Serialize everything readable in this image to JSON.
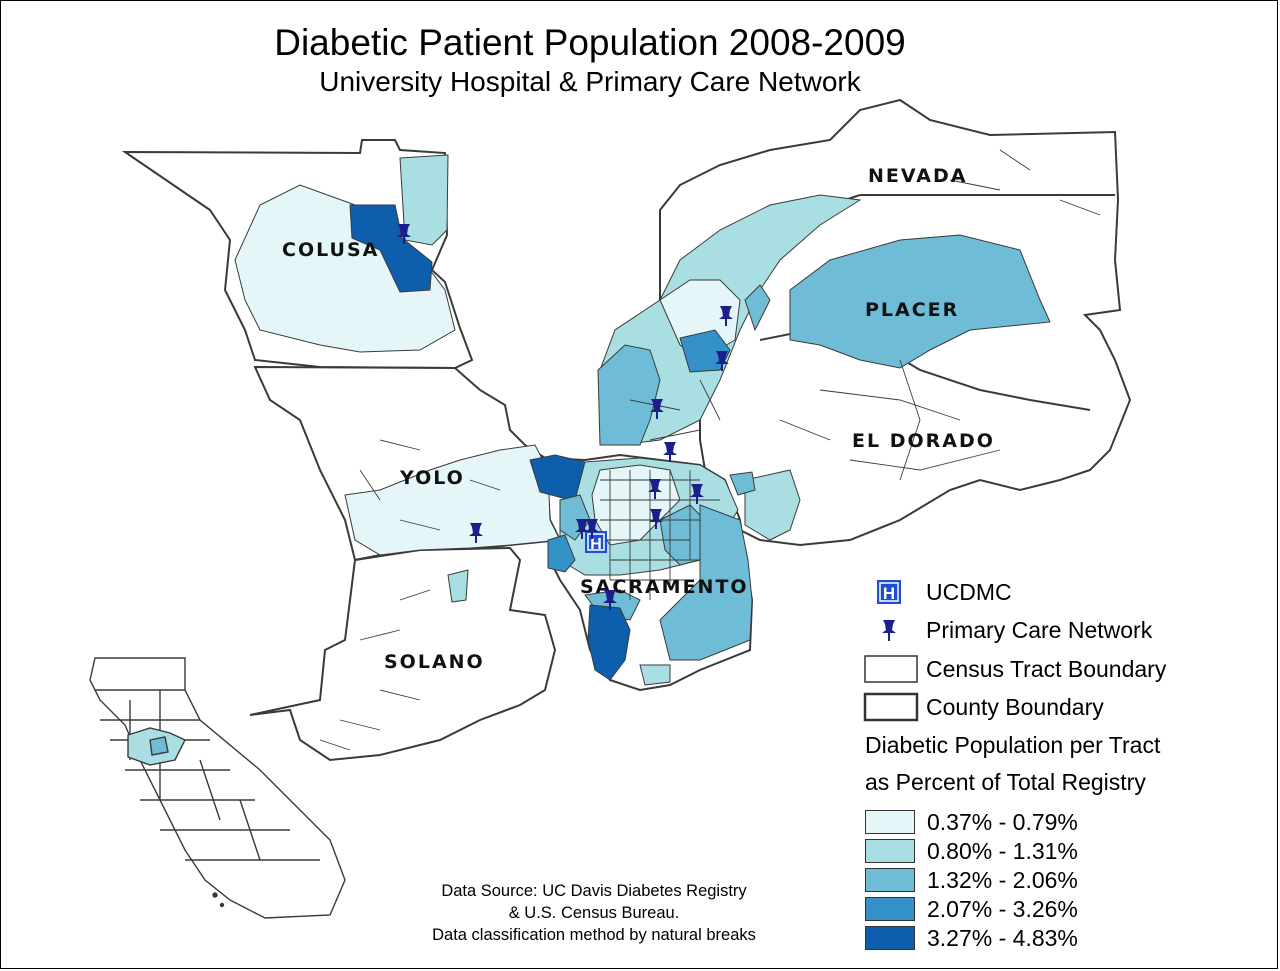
{
  "title": "Diabetic Patient Population 2008-2009",
  "subtitle": "University Hospital & Primary Care Network",
  "counties": {
    "colusa": "COLUSA",
    "nevada": "NEVADA",
    "placer": "PLACER",
    "yolo": "YOLO",
    "el_dorado": "EL DORADO",
    "sacramento": "SACRAMENTO",
    "solano": "SOLANO"
  },
  "legend": {
    "hospital_icon": "H",
    "hospital_label": "UCDMC",
    "clinic_label": "Primary Care Network",
    "tract_label": "Census Tract Boundary",
    "county_label": "County Boundary",
    "classes_title_line1": "Diabetic Population per Tract",
    "classes_title_line2": "as Percent of Total Registry",
    "classes": [
      {
        "label": "0.37% - 0.79%",
        "color": "#e4f6f8"
      },
      {
        "label": "0.80% - 1.31%",
        "color": "#a9dfe3"
      },
      {
        "label": "1.32% - 2.06%",
        "color": "#6fbcd6"
      },
      {
        "label": "2.07% - 3.26%",
        "color": "#3391c8"
      },
      {
        "label": "3.27% - 4.83%",
        "color": "#0d5fae"
      }
    ]
  },
  "source": {
    "line1": "Data Source: UC Davis Diabetes Registry",
    "line2": "& U.S. Census Bureau.",
    "line3": "Data classification method by natural breaks"
  },
  "colors": {
    "outline": "#3a3a3a",
    "marker": "#1c1e8c",
    "hospital": "#1f4fd0"
  }
}
